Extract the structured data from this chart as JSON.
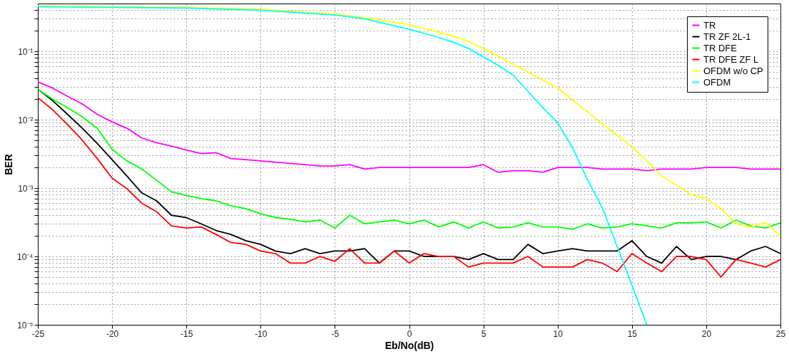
{
  "chart_data": {
    "type": "line",
    "xlabel": "Eb/No(dB)",
    "ylabel": "BER",
    "log": "y",
    "grid": true,
    "legend": "top right",
    "line_style": "solid",
    "marker": "none",
    "x": [
      -25,
      -24,
      -23,
      -22,
      -21,
      -20,
      -19,
      -18,
      -17,
      -16,
      -15,
      -14,
      -13,
      -12,
      -11,
      -10,
      -9,
      -8,
      -7,
      -6,
      -5,
      -4,
      -3,
      -2,
      -1,
      0,
      1,
      2,
      3,
      4,
      5,
      6,
      7,
      8,
      9,
      10,
      11,
      12,
      13,
      14,
      15,
      16,
      17,
      18,
      19,
      20,
      21,
      22,
      23,
      24,
      25
    ],
    "xlim": [
      -25,
      25
    ],
    "xticks": [
      -25,
      -20,
      -15,
      -10,
      -5,
      0,
      5,
      10,
      15,
      20,
      25
    ],
    "ylim": [
      1e-05,
      0.5
    ],
    "yticks": [
      {
        "value": 1e-05,
        "label": "10⁻⁵"
      },
      {
        "value": 2e-05,
        "label": null
      },
      {
        "value": 3e-05,
        "label": null
      },
      {
        "value": 4e-05,
        "label": null
      },
      {
        "value": 5e-05,
        "label": null
      },
      {
        "value": 6e-05,
        "label": null
      },
      {
        "value": 7e-05,
        "label": null
      },
      {
        "value": 8e-05,
        "label": null
      },
      {
        "value": 9e-05,
        "label": null
      },
      {
        "value": 0.0001,
        "label": "10⁻⁴"
      },
      {
        "value": 0.0002,
        "label": null
      },
      {
        "value": 0.0003,
        "label": null
      },
      {
        "value": 0.0004,
        "label": null
      },
      {
        "value": 0.0005,
        "label": null
      },
      {
        "value": 0.0006,
        "label": null
      },
      {
        "value": 0.0007,
        "label": null
      },
      {
        "value": 0.0008,
        "label": null
      },
      {
        "value": 0.0009,
        "label": null
      },
      {
        "value": 0.001,
        "label": "10⁻³"
      },
      {
        "value": 0.002,
        "label": null
      },
      {
        "value": 0.003,
        "label": null
      },
      {
        "value": 0.004,
        "label": null
      },
      {
        "value": 0.005,
        "label": null
      },
      {
        "value": 0.006,
        "label": null
      },
      {
        "value": 0.007,
        "label": null
      },
      {
        "value": 0.008,
        "label": null
      },
      {
        "value": 0.009,
        "label": null
      },
      {
        "value": 0.01,
        "label": "10⁻²"
      },
      {
        "value": 0.02,
        "label": null
      },
      {
        "value": 0.03,
        "label": null
      },
      {
        "value": 0.04,
        "label": null
      },
      {
        "value": 0.05,
        "label": null
      },
      {
        "value": 0.06,
        "label": null
      },
      {
        "value": 0.07,
        "label": null
      },
      {
        "value": 0.08,
        "label": null
      },
      {
        "value": 0.09,
        "label": null
      },
      {
        "value": 0.1,
        "label": "10⁻¹"
      },
      {
        "value": 0.2,
        "label": null
      },
      {
        "value": 0.3,
        "label": null
      },
      {
        "value": 0.4,
        "label": null
      }
    ],
    "series": [
      {
        "name": "TR",
        "color": "#ff00ff",
        "values": [
          0.0358,
          0.029,
          0.022,
          0.017,
          0.012,
          0.0093,
          0.0075,
          0.0054,
          0.0046,
          0.0041,
          0.0036,
          0.0032,
          0.0033,
          0.0027,
          0.0026,
          0.0025,
          0.0024,
          0.0023,
          0.0022,
          0.0021,
          0.0021,
          0.0022,
          0.0019,
          0.002,
          0.002,
          0.002,
          0.002,
          0.002,
          0.002,
          0.002,
          0.0022,
          0.0017,
          0.0018,
          0.0018,
          0.0017,
          0.002,
          0.002,
          0.002,
          0.0019,
          0.0019,
          0.0019,
          0.0018,
          0.0019,
          0.0019,
          0.0019,
          0.002,
          0.002,
          0.002,
          0.0019,
          0.0019,
          0.0019
        ]
      },
      {
        "name": "TR ZF 2L-1",
        "color": "#000000",
        "values": [
          0.028,
          0.019,
          0.012,
          0.0075,
          0.0045,
          0.0026,
          0.0015,
          0.00085,
          0.00065,
          0.0004,
          0.00037,
          0.0003,
          0.00024,
          0.00021,
          0.00017,
          0.00015,
          0.00012,
          0.00011,
          0.00013,
          0.00011,
          0.00012,
          0.00012,
          0.00013,
          8e-05,
          0.00012,
          0.00012,
          0.0001,
          0.0001,
          0.0001,
          9e-05,
          0.00011,
          9e-05,
          9e-05,
          0.00015,
          0.00011,
          0.00012,
          0.00013,
          0.00012,
          0.00012,
          0.00012,
          0.00017,
          0.0001,
          8e-05,
          0.00014,
          9e-05,
          0.0001,
          0.0001,
          9e-05,
          0.00012,
          0.00014,
          0.00011
        ]
      },
      {
        "name": "TR DFE",
        "color": "#00ff00",
        "values": [
          0.028,
          0.02,
          0.015,
          0.011,
          0.0075,
          0.0037,
          0.0025,
          0.0019,
          0.0013,
          0.00088,
          0.00078,
          0.0007,
          0.00065,
          0.00055,
          0.0005,
          0.00042,
          0.00037,
          0.00035,
          0.00032,
          0.00034,
          0.00026,
          0.0004,
          0.0003,
          0.00032,
          0.00034,
          0.0003,
          0.00034,
          0.00027,
          0.00032,
          0.00026,
          0.00032,
          0.00026,
          0.00027,
          0.00031,
          0.00027,
          0.00027,
          0.00025,
          0.0003,
          0.00026,
          0.00027,
          0.0003,
          0.00028,
          0.00026,
          0.00031,
          0.00031,
          0.00032,
          0.00026,
          0.00034,
          0.00028,
          0.00026,
          0.00031
        ]
      },
      {
        "name": "TR DFE ZF L",
        "color": "#ff0000",
        "values": [
          0.021,
          0.014,
          0.0085,
          0.005,
          0.0027,
          0.0014,
          0.00098,
          0.0006,
          0.00045,
          0.00028,
          0.00026,
          0.00027,
          0.00021,
          0.00016,
          0.00015,
          0.00012,
          0.00011,
          8e-05,
          8e-05,
          0.0001,
          8.5e-05,
          0.00013,
          8e-05,
          8e-05,
          0.00012,
          8e-05,
          0.00011,
          0.0001,
          0.0001,
          7e-05,
          8e-05,
          8e-05,
          8e-05,
          0.0001,
          7e-05,
          7e-05,
          7e-05,
          9e-05,
          8e-05,
          6e-05,
          0.00011,
          8e-05,
          6e-05,
          0.0001,
          0.0001,
          9e-05,
          5e-05,
          9e-05,
          8e-05,
          7e-05,
          9e-05
        ]
      },
      {
        "name": "OFDM w/o CP",
        "color": "#ffff00",
        "x": [
          -25,
          -20,
          -15,
          -10,
          -5,
          -3,
          0,
          2,
          3,
          4,
          5,
          6,
          7,
          8,
          9,
          10,
          11,
          12,
          13,
          14,
          15,
          16,
          17,
          18,
          19,
          20,
          21,
          22,
          23,
          24,
          25
        ],
        "values": [
          0.46,
          0.45,
          0.44,
          0.41,
          0.35,
          0.31,
          0.245,
          0.19,
          0.165,
          0.14,
          0.11,
          0.085,
          0.065,
          0.05,
          0.038,
          0.029,
          0.0195,
          0.013,
          0.0088,
          0.0059,
          0.004,
          0.0025,
          0.0015,
          0.0011,
          0.0008,
          0.0007,
          0.0005,
          0.0003,
          0.00027,
          0.00031,
          0.0002
        ]
      },
      {
        "name": "OFDM",
        "color": "#00ffff",
        "x": [
          -25,
          -20,
          -15,
          -10,
          -5,
          -3,
          0,
          2,
          3,
          4,
          5,
          6,
          7,
          8,
          9,
          10,
          11,
          12,
          13,
          14,
          15,
          16
        ],
        "values": [
          0.45,
          0.44,
          0.43,
          0.4,
          0.34,
          0.3,
          0.21,
          0.16,
          0.135,
          0.11,
          0.083,
          0.062,
          0.045,
          0.026,
          0.015,
          0.009,
          0.0039,
          0.00134,
          0.00052,
          0.00014,
          3.8e-05,
          1e-05
        ]
      }
    ]
  }
}
